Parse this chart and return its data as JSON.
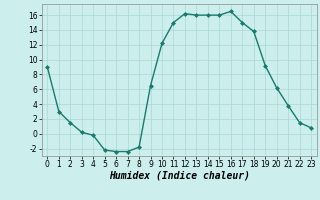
{
  "x": [
    0,
    1,
    2,
    3,
    4,
    5,
    6,
    7,
    8,
    9,
    10,
    11,
    12,
    13,
    14,
    15,
    16,
    17,
    18,
    19,
    20,
    21,
    22,
    23
  ],
  "y": [
    9,
    3,
    1.5,
    0.2,
    -0.2,
    -2.2,
    -2.4,
    -2.4,
    -1.8,
    6.5,
    12.2,
    15,
    16.2,
    16,
    16,
    16,
    16.5,
    15,
    13.8,
    9.2,
    6.2,
    3.8,
    1.5,
    0.8
  ],
  "line_color": "#1a7a6e",
  "marker": "D",
  "marker_size": 2.0,
  "bg_color": "#cceeed",
  "grid_color": "#aad8d6",
  "xlabel": "Humidex (Indice chaleur)",
  "xlabel_fontsize": 7,
  "xlim": [
    -0.5,
    23.5
  ],
  "ylim": [
    -3,
    17.5
  ],
  "yticks": [
    -2,
    0,
    2,
    4,
    6,
    8,
    10,
    12,
    14,
    16
  ],
  "xticks": [
    0,
    1,
    2,
    3,
    4,
    5,
    6,
    7,
    8,
    9,
    10,
    11,
    12,
    13,
    14,
    15,
    16,
    17,
    18,
    19,
    20,
    21,
    22,
    23
  ],
  "tick_fontsize": 5.5,
  "line_width": 1.0
}
